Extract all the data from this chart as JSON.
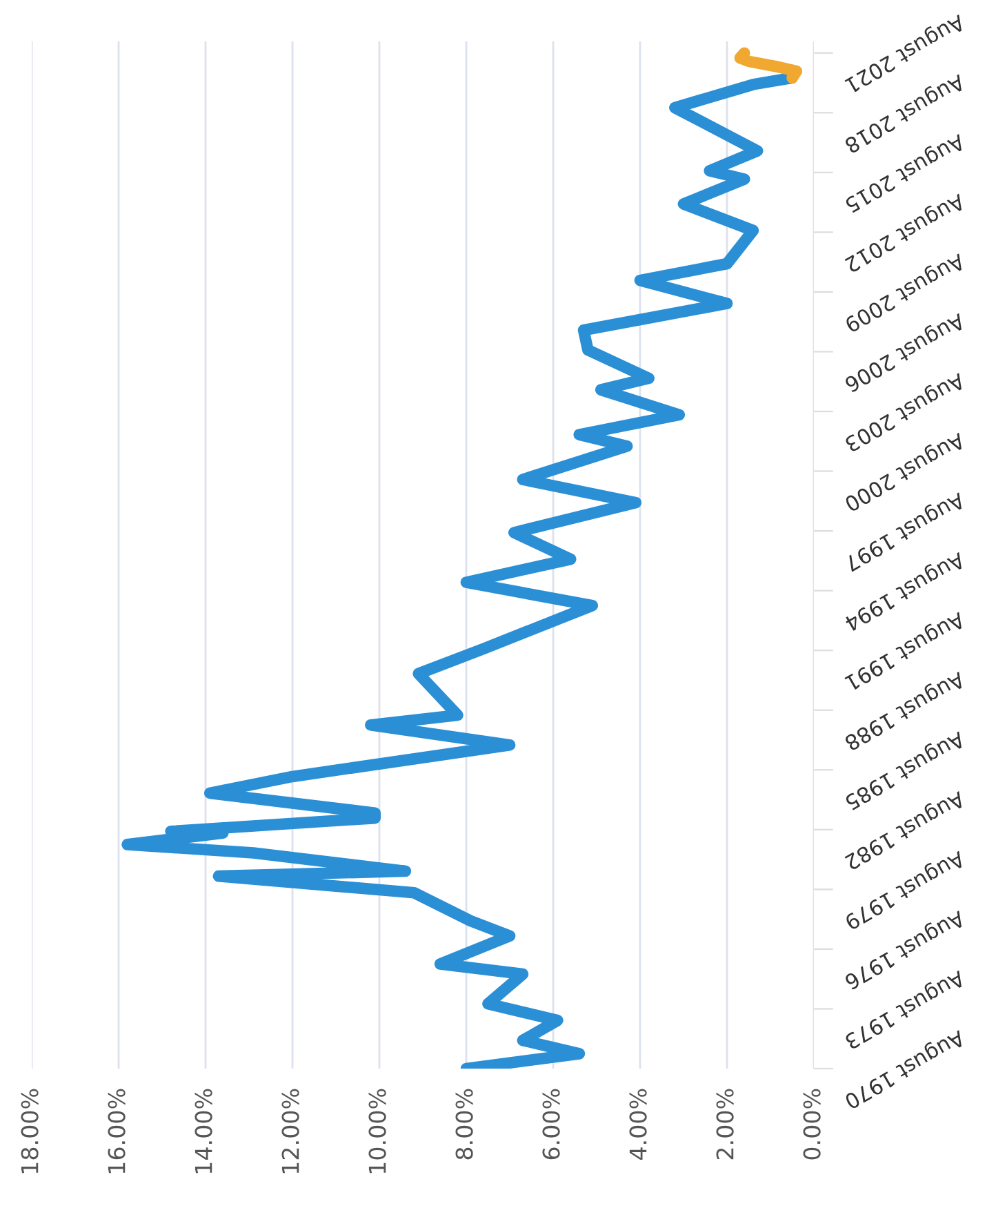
{
  "chart_data": {
    "type": "line",
    "orientation": "horizontal",
    "xlim": [
      18,
      0
    ],
    "xticks": [
      {
        "value": 18,
        "label": "18.00%"
      },
      {
        "value": 16,
        "label": "16.00%"
      },
      {
        "value": 14,
        "label": "14.00%"
      },
      {
        "value": 12,
        "label": "12.00%"
      },
      {
        "value": 10,
        "label": "10.00%"
      },
      {
        "value": 8,
        "label": "8.00%"
      },
      {
        "value": 6,
        "label": "6.00%"
      },
      {
        "value": 4,
        "label": "4.00%"
      },
      {
        "value": 2,
        "label": "2.00%"
      },
      {
        "value": 0,
        "label": "0.00%"
      }
    ],
    "ylim": [
      "1970-08",
      "2022-03"
    ],
    "yticks": [
      {
        "value": "1970-08",
        "label": "August 1970"
      },
      {
        "value": "1973-08",
        "label": "August 1973"
      },
      {
        "value": "1976-08",
        "label": "August 1976"
      },
      {
        "value": "1979-08",
        "label": "August 1979"
      },
      {
        "value": "1982-08",
        "label": "August 1982"
      },
      {
        "value": "1985-08",
        "label": "August 1985"
      },
      {
        "value": "1988-08",
        "label": "August 1988"
      },
      {
        "value": "1991-08",
        "label": "August 1991"
      },
      {
        "value": "1994-08",
        "label": "August 1994"
      },
      {
        "value": "1997-08",
        "label": "August 1997"
      },
      {
        "value": "2000-08",
        "label": "August 2000"
      },
      {
        "value": "2003-08",
        "label": "August 2003"
      },
      {
        "value": "2006-08",
        "label": "August 2006"
      },
      {
        "value": "2009-08",
        "label": "August 2009"
      },
      {
        "value": "2012-08",
        "label": "August 2012"
      },
      {
        "value": "2015-08",
        "label": "August 2015"
      },
      {
        "value": "2018-08",
        "label": "August 2018"
      },
      {
        "value": "2021-08",
        "label": "August 2021"
      }
    ],
    "grid": "x",
    "marker": "none",
    "line_style": "solid",
    "legend": false,
    "series": [
      {
        "color": "#2b8fd6",
        "x": [
          "1970-08",
          "1971-05",
          "1972-01",
          "1973-01",
          "1973-11",
          "1975-05",
          "1975-11",
          "1977-04",
          "1978-01",
          "1979-06",
          "1980-04",
          "1980-07",
          "1981-06",
          "1981-11",
          "1982-06",
          "1982-07",
          "1983-03",
          "1983-06",
          "1984-06",
          "1985-04",
          "1986-11",
          "1987-11",
          "1988-05",
          "1990-06",
          "1991-09",
          "1993-11",
          "1995-01",
          "1996-03",
          "1997-07",
          "1999-01",
          "2000-03",
          "2001-11",
          "2002-06",
          "2003-06",
          "2004-09",
          "2005-04",
          "2006-09",
          "2007-09",
          "2009-01",
          "2010-03",
          "2011-01",
          "2012-09",
          "2014-01",
          "2015-04",
          "2015-09",
          "2016-09",
          "2018-11",
          "2020-01",
          "2020-05"
        ],
        "values": [
          8.0,
          5.4,
          6.7,
          5.9,
          7.5,
          6.7,
          8.6,
          7.0,
          7.9,
          9.2,
          13.7,
          9.4,
          12.9,
          15.8,
          13.6,
          14.8,
          10.1,
          10.1,
          13.9,
          12.0,
          7.0,
          10.2,
          8.2,
          9.1,
          7.6,
          5.1,
          8.0,
          5.6,
          6.9,
          4.1,
          6.7,
          4.3,
          5.4,
          3.1,
          4.9,
          3.8,
          5.2,
          5.3,
          2.0,
          4.0,
          2.0,
          1.4,
          3.0,
          1.6,
          2.4,
          1.3,
          3.2,
          1.4,
          0.5
        ]
      },
      {
        "color": "#f0a830",
        "x": [
          "2020-05",
          "2020-09",
          "2020-12",
          "2021-03",
          "2021-05",
          "2021-08"
        ],
        "values": [
          0.5,
          0.4,
          0.9,
          1.5,
          1.7,
          1.6
        ]
      }
    ]
  }
}
